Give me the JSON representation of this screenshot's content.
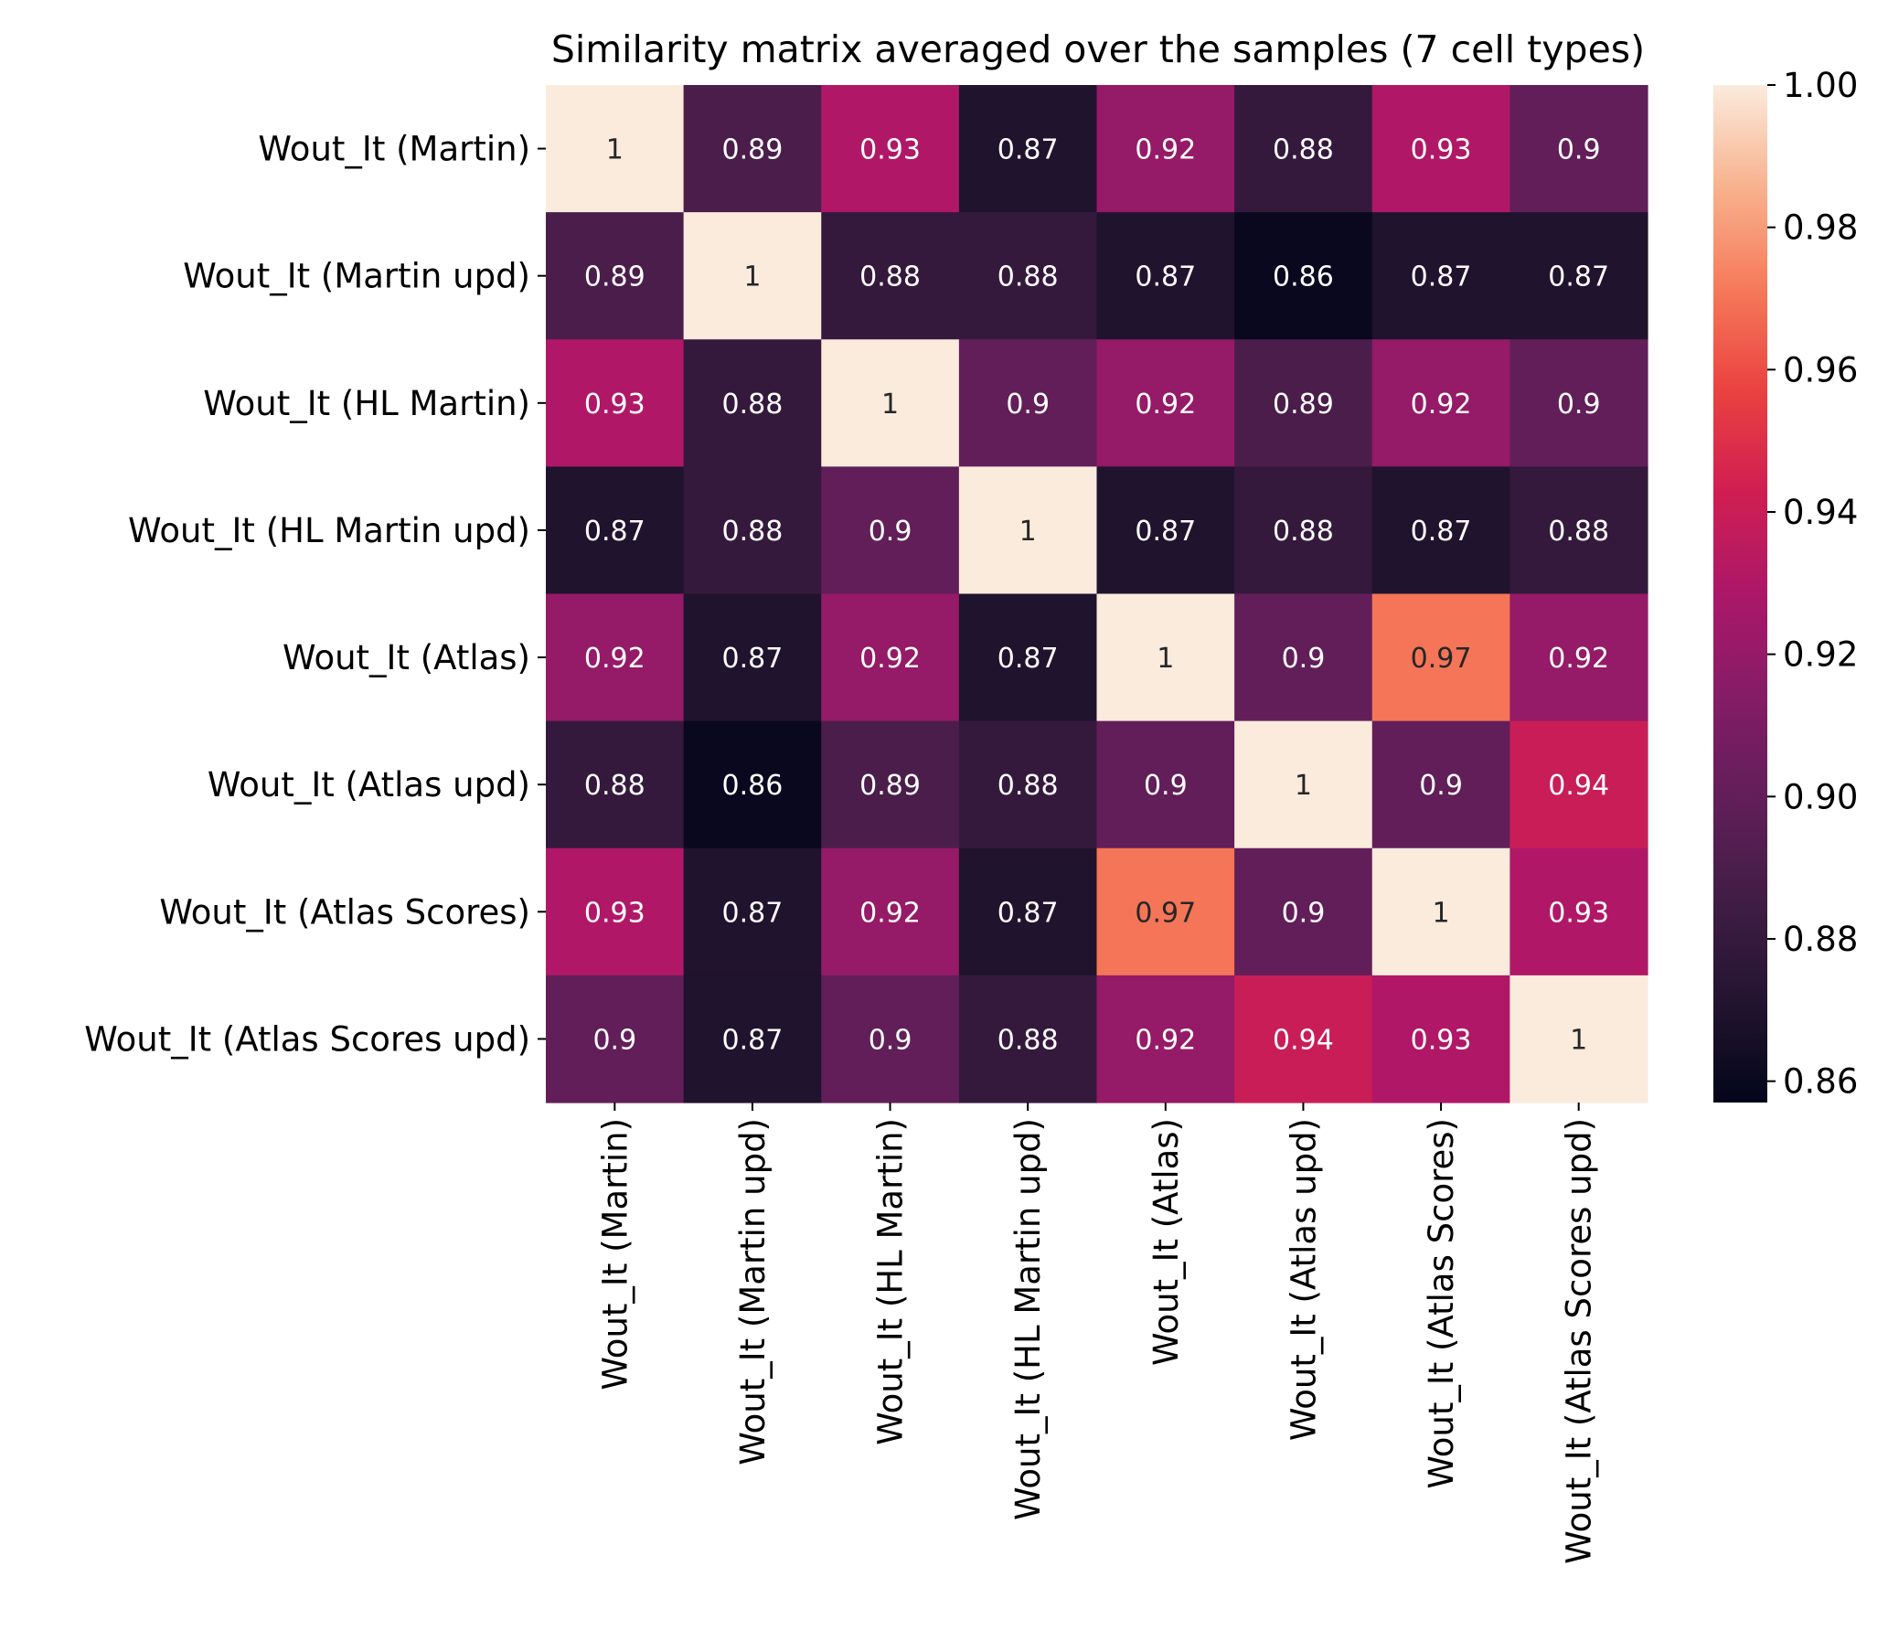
{
  "chart_data": {
    "type": "heatmap",
    "title": "Similarity matrix averaged over the samples (7 cell types)",
    "row_labels": [
      "Wout_It (Martin)",
      "Wout_It (Martin upd)",
      "Wout_It (HL Martin)",
      "Wout_It (HL Martin upd)",
      "Wout_It (Atlas)",
      "Wout_It (Atlas upd)",
      "Wout_It (Atlas Scores)",
      "Wout_It (Atlas Scores upd)"
    ],
    "col_labels": [
      "Wout_It (Martin)",
      "Wout_It (Martin upd)",
      "Wout_It (HL Martin)",
      "Wout_It (HL Martin upd)",
      "Wout_It (Atlas)",
      "Wout_It (Atlas upd)",
      "Wout_It (Atlas Scores)",
      "Wout_It (Atlas Scores upd)"
    ],
    "values": [
      [
        1.0,
        0.89,
        0.93,
        0.87,
        0.92,
        0.88,
        0.93,
        0.9
      ],
      [
        0.89,
        1.0,
        0.88,
        0.88,
        0.87,
        0.86,
        0.87,
        0.87
      ],
      [
        0.93,
        0.88,
        1.0,
        0.9,
        0.92,
        0.89,
        0.92,
        0.9
      ],
      [
        0.87,
        0.88,
        0.9,
        1.0,
        0.87,
        0.88,
        0.87,
        0.88
      ],
      [
        0.92,
        0.87,
        0.92,
        0.87,
        1.0,
        0.9,
        0.97,
        0.92
      ],
      [
        0.88,
        0.86,
        0.89,
        0.88,
        0.9,
        1.0,
        0.9,
        0.94
      ],
      [
        0.93,
        0.87,
        0.92,
        0.87,
        0.97,
        0.9,
        1.0,
        0.93
      ],
      [
        0.9,
        0.87,
        0.9,
        0.88,
        0.92,
        0.94,
        0.93,
        1.0
      ]
    ],
    "annotations": [
      [
        "1",
        "0.89",
        "0.93",
        "0.87",
        "0.92",
        "0.88",
        "0.93",
        "0.9"
      ],
      [
        "0.89",
        "1",
        "0.88",
        "0.88",
        "0.87",
        "0.86",
        "0.87",
        "0.87"
      ],
      [
        "0.93",
        "0.88",
        "1",
        "0.9",
        "0.92",
        "0.89",
        "0.92",
        "0.9"
      ],
      [
        "0.87",
        "0.88",
        "0.9",
        "1",
        "0.87",
        "0.88",
        "0.87",
        "0.88"
      ],
      [
        "0.92",
        "0.87",
        "0.92",
        "0.87",
        "1",
        "0.9",
        "0.97",
        "0.92"
      ],
      [
        "0.88",
        "0.86",
        "0.89",
        "0.88",
        "0.9",
        "1",
        "0.9",
        "0.94"
      ],
      [
        "0.93",
        "0.87",
        "0.92",
        "0.87",
        "0.97",
        "0.9",
        "1",
        "0.93"
      ],
      [
        "0.9",
        "0.87",
        "0.9",
        "0.88",
        "0.92",
        "0.94",
        "0.93",
        "1"
      ]
    ],
    "colormap": "rocket",
    "vmin": 0.857,
    "vmax": 1.0,
    "colorbar_ticks": [
      0.86,
      0.88,
      0.9,
      0.92,
      0.94,
      0.96,
      0.98,
      1.0
    ],
    "colorbar_tick_labels": [
      "0.86",
      "0.88",
      "0.90",
      "0.92",
      "0.94",
      "0.96",
      "0.98",
      "1.00"
    ],
    "colorbar_position": "right",
    "grid": false
  }
}
